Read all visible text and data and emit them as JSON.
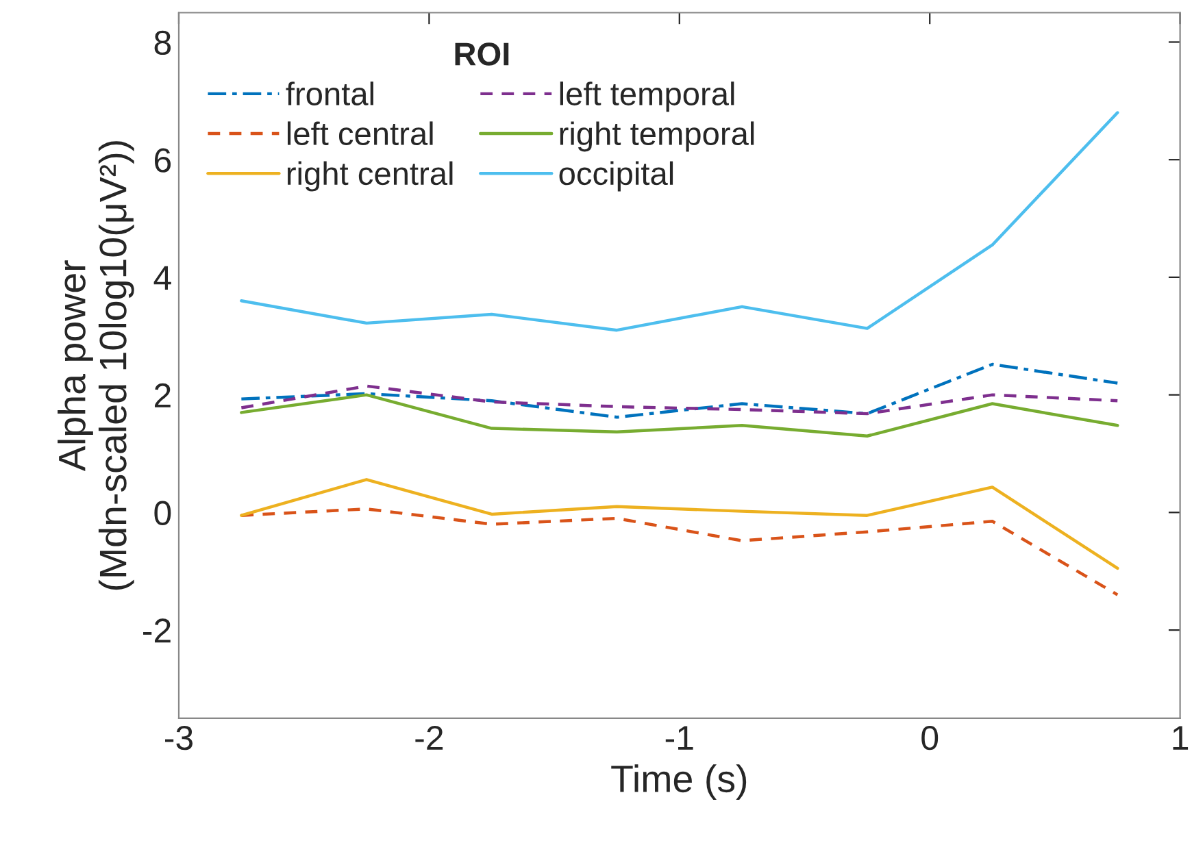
{
  "chart_data": {
    "type": "line",
    "xlabel": "Time (s)",
    "ylabel": "Alpha power\n(Mdn-scaled 10log10(μV²))",
    "legend_title": "ROI",
    "legend": "top left",
    "x": [
      -2.75,
      -2.25,
      -1.75,
      -1.25,
      -0.75,
      -0.25,
      0.25,
      0.75
    ],
    "xlim": [
      -3,
      1
    ],
    "xticks": [
      -3,
      -2,
      -1,
      0,
      1
    ],
    "ylim": [
      -3.5,
      8.5
    ],
    "yticks": [
      -2,
      0,
      2,
      4,
      6,
      8
    ],
    "grid": false,
    "series": [
      {
        "name": "frontal",
        "color": "#0072bd",
        "line_style": "dashdot",
        "values": [
          1.93,
          2.02,
          1.9,
          1.62,
          1.85,
          1.68,
          2.52,
          2.2
        ]
      },
      {
        "name": "left central",
        "color": "#d95319",
        "line_style": "dashed",
        "values": [
          -0.05,
          0.06,
          -0.2,
          -0.1,
          -0.48,
          -0.33,
          -0.15,
          -1.4
        ]
      },
      {
        "name": "right central",
        "color": "#edb120",
        "line_style": "solid",
        "values": [
          -0.05,
          0.56,
          -0.03,
          0.1,
          0.02,
          -0.05,
          0.43,
          -0.95
        ]
      },
      {
        "name": "left temporal",
        "color": "#7e2f8e",
        "line_style": "dashed",
        "values": [
          1.78,
          2.15,
          1.88,
          1.8,
          1.75,
          1.68,
          2.0,
          1.9
        ]
      },
      {
        "name": "right temporal",
        "color": "#77ac30",
        "line_style": "solid",
        "values": [
          1.7,
          2.0,
          1.43,
          1.37,
          1.48,
          1.3,
          1.85,
          1.48
        ]
      },
      {
        "name": "occipital",
        "color": "#4dbeee",
        "line_style": "solid",
        "values": [
          3.6,
          3.22,
          3.37,
          3.1,
          3.5,
          3.13,
          4.55,
          6.8
        ]
      }
    ]
  }
}
